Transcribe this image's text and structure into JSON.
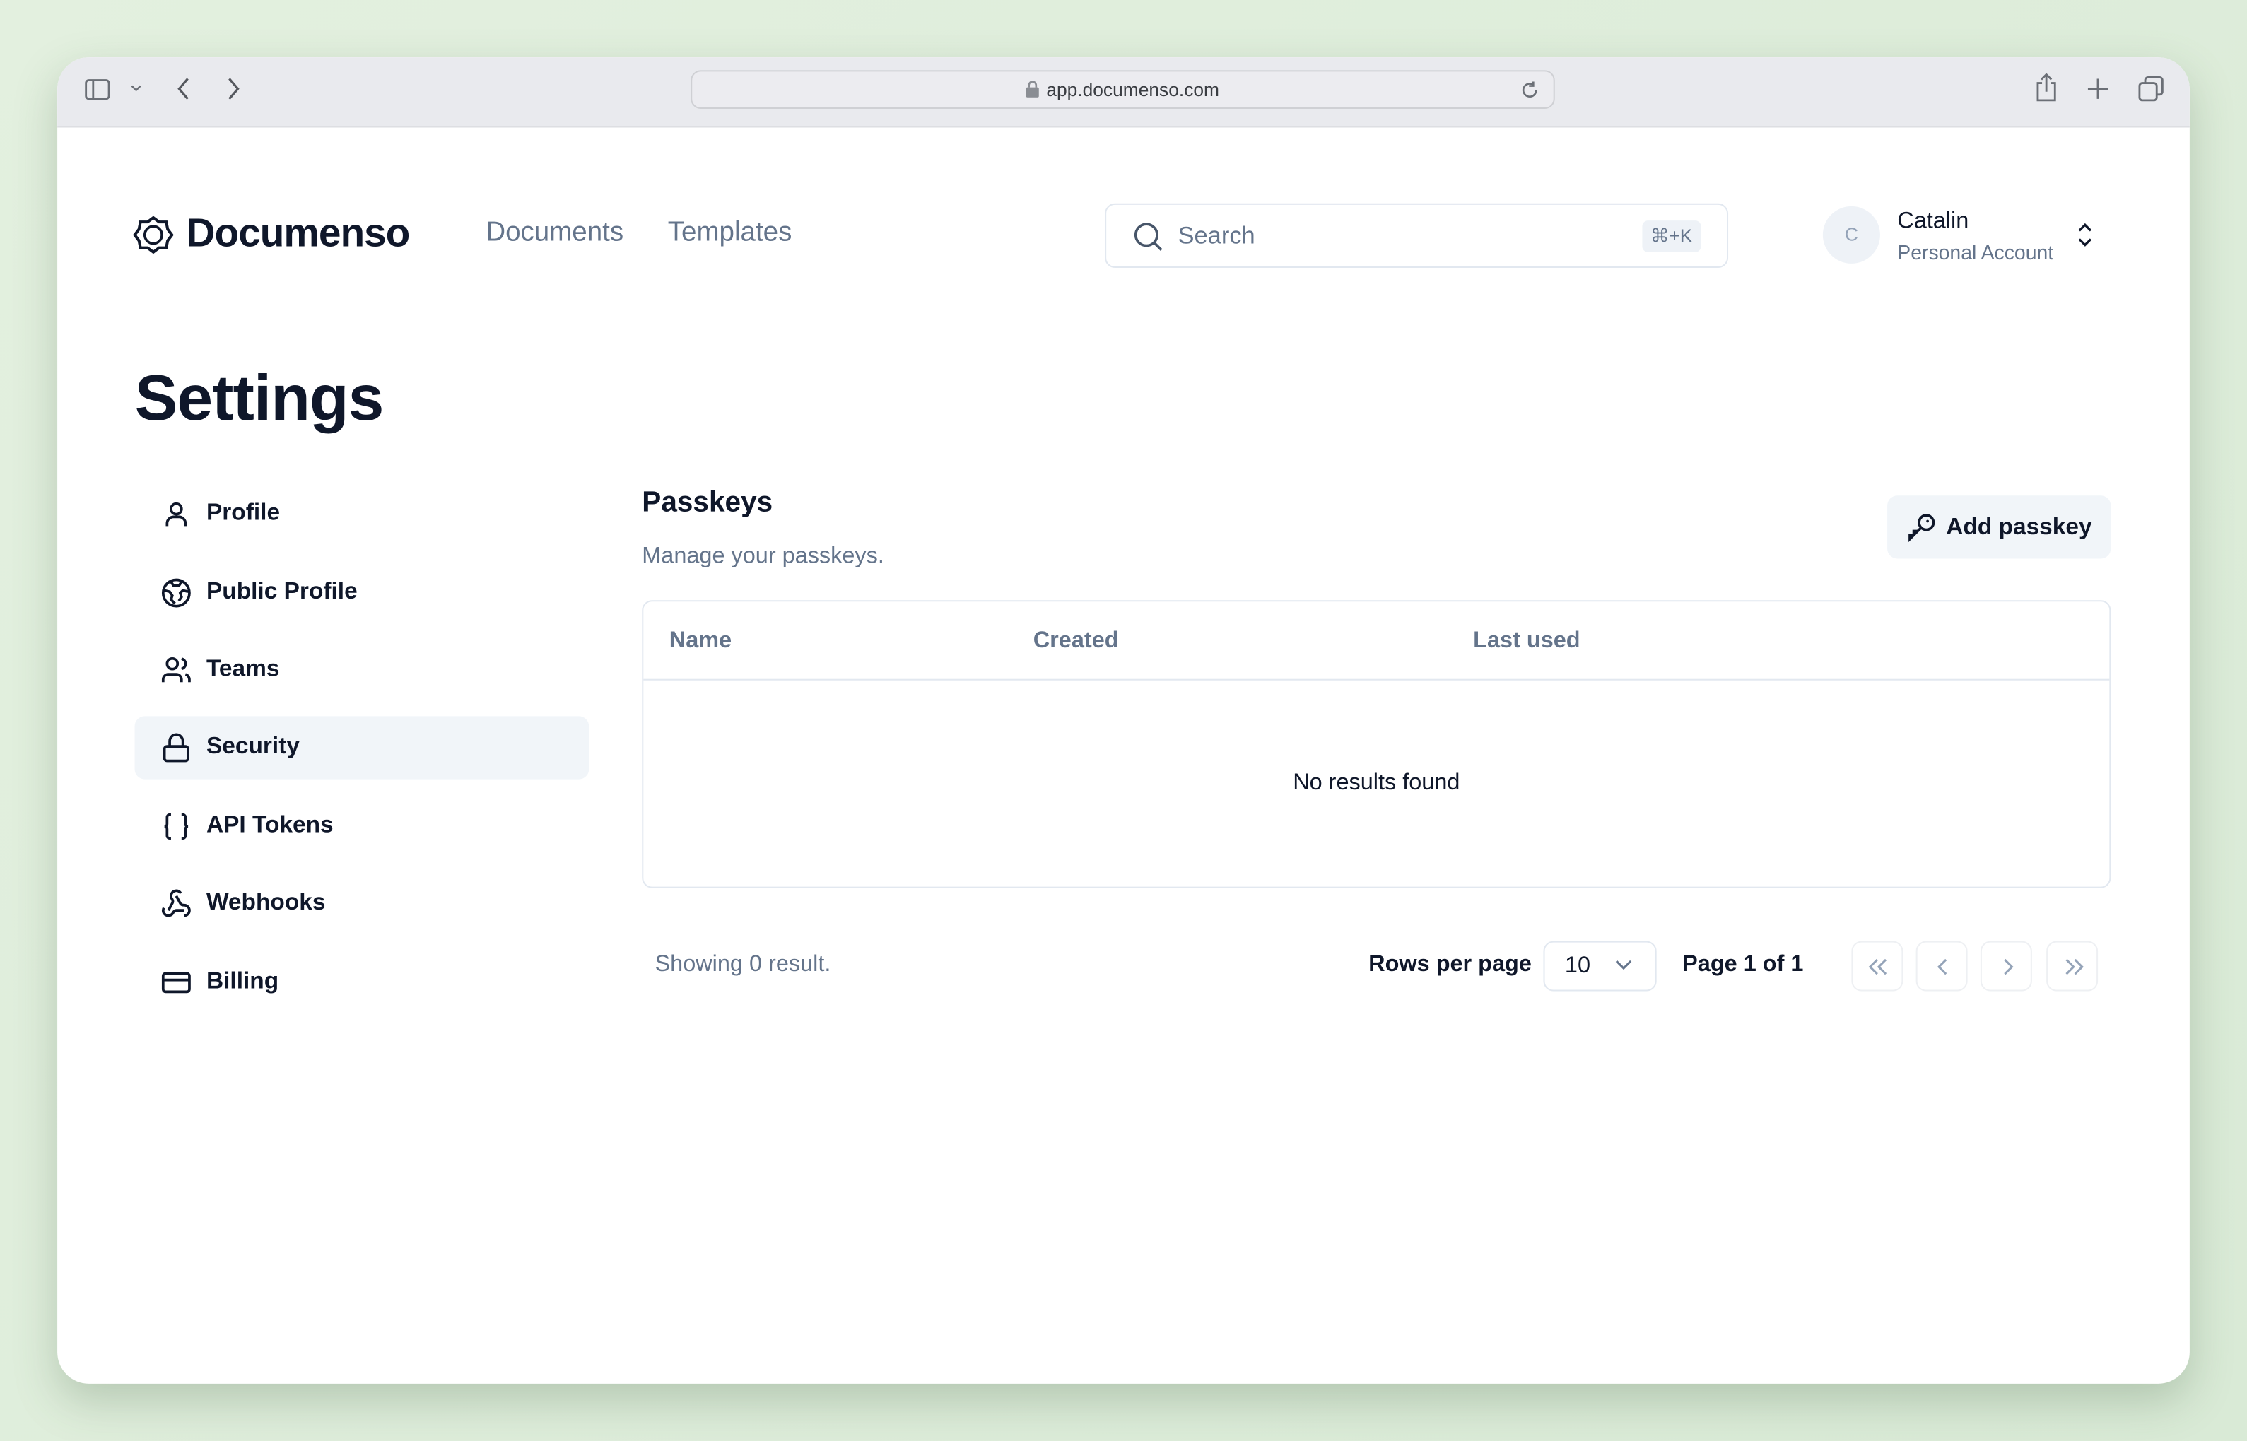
{
  "browser": {
    "url": "app.documenso.com",
    "icons": [
      "sidebar-icon",
      "chevron-down-icon",
      "back-icon",
      "forward-icon",
      "lock-icon",
      "reload-icon",
      "share-icon",
      "new-tab-icon",
      "tabs-overview-icon"
    ]
  },
  "header": {
    "brand": "Documenso",
    "nav": [
      {
        "label": "Documents"
      },
      {
        "label": "Templates"
      }
    ],
    "search": {
      "placeholder": "Search",
      "shortcut": "⌘+K"
    },
    "account": {
      "initial": "C",
      "name": "Catalin",
      "type": "Personal Account"
    }
  },
  "page": {
    "title": "Settings"
  },
  "sidebar": {
    "items": [
      {
        "label": "Profile",
        "icon": "user-icon"
      },
      {
        "label": "Public Profile",
        "icon": "globe-icon"
      },
      {
        "label": "Teams",
        "icon": "users-icon"
      },
      {
        "label": "Security",
        "icon": "lock-icon",
        "active": true
      },
      {
        "label": "API Tokens",
        "icon": "braces-icon"
      },
      {
        "label": "Webhooks",
        "icon": "webhook-icon"
      },
      {
        "label": "Billing",
        "icon": "credit-card-icon"
      }
    ]
  },
  "main": {
    "title": "Passkeys",
    "subtitle": "Manage your passkeys.",
    "add_button": "Add passkey",
    "table": {
      "columns": [
        "Name",
        "Created",
        "Last used"
      ],
      "empty": "No results found"
    },
    "footer": {
      "showing": "Showing 0 result.",
      "rows_label": "Rows per page",
      "rows_value": "10",
      "page": "Page 1 of 1"
    }
  },
  "colors": {
    "text": "#0f172a",
    "muted": "#64748b",
    "active_bg": "#f1f5f9",
    "border": "#e2e8f0"
  }
}
